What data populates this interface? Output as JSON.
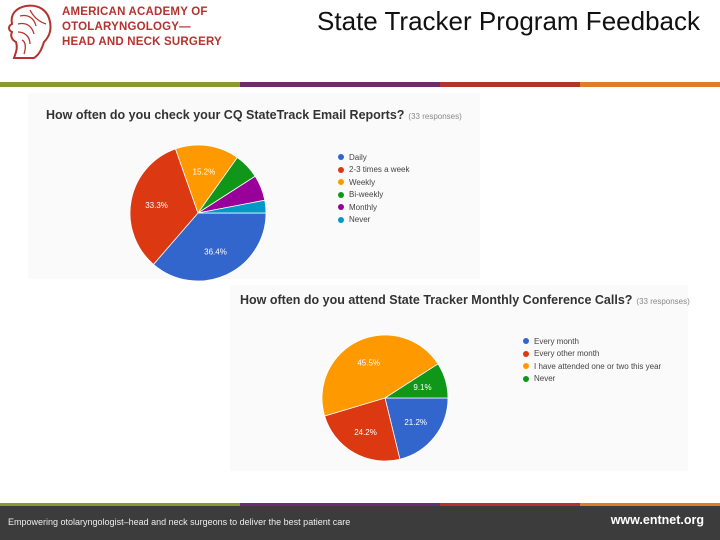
{
  "header": {
    "org_lines": [
      "AMERICAN ACADEMY OF",
      "OTOLARYNGOLOGY—",
      "HEAD AND NECK SURGERY"
    ],
    "title": "State Tracker Program Feedback",
    "bar_colors": [
      "#8a9a2e",
      "#6b2d6b",
      "#b5332e",
      "#e07b26"
    ]
  },
  "chart1": {
    "question": "How often do you check your CQ StateTrack Email Reports?",
    "responses": "(33 responses)"
  },
  "chart2": {
    "question": "How often do you attend State Tracker Monthly Conference Calls?",
    "responses": "(33 responses)"
  },
  "footer": {
    "tagline": "Empowering otolaryngologist–head and neck surgeons to deliver the best patient care",
    "site": "www.entnet.org"
  },
  "chart_data": [
    {
      "type": "pie",
      "title": "How often do you check your CQ StateTrack Email Reports?",
      "categories": [
        "Daily",
        "2-3 times a week",
        "Weekly",
        "Bi-weekly",
        "Monthly",
        "Never"
      ],
      "values": [
        36.4,
        33.3,
        15.2,
        6.1,
        6.1,
        3.0
      ],
      "labels": [
        "36.4%",
        "33.3%",
        "15.2%",
        "",
        "",
        ""
      ],
      "colors": [
        "#3366cc",
        "#dc3912",
        "#ff9900",
        "#109618",
        "#990099",
        "#0099c6"
      ],
      "legend": "right"
    },
    {
      "type": "pie",
      "title": "How often do you attend State Tracker Monthly Conference Calls?",
      "categories": [
        "Every month",
        "Every other month",
        "I have attended one or two this year",
        "Never"
      ],
      "values": [
        21.2,
        24.2,
        45.5,
        9.1
      ],
      "labels": [
        "21.2%",
        "24.2%",
        "45.5%",
        "9.1%"
      ],
      "colors": [
        "#3366cc",
        "#dc3912",
        "#ff9900",
        "#109618"
      ],
      "legend": "right"
    }
  ]
}
